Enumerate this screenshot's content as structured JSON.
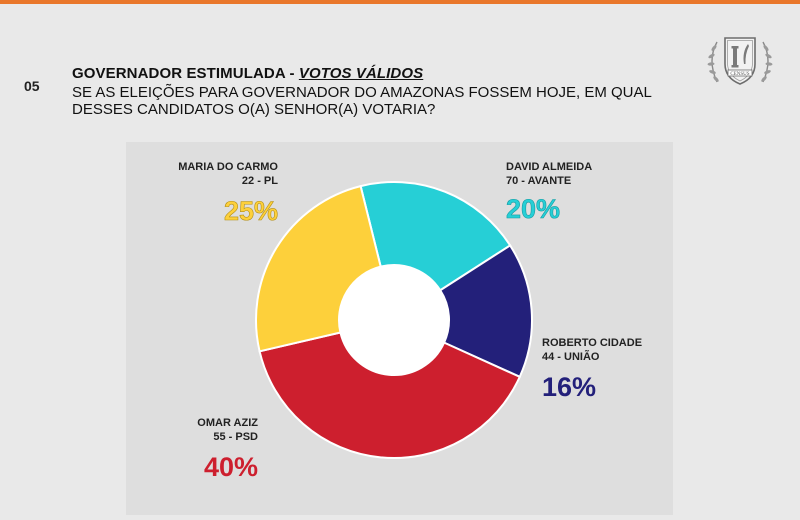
{
  "header": {
    "slide_number": "05",
    "title_main": "GOVERNADOR ESTIMULADA",
    "title_sep": " - ",
    "title_highlight": "VOTOS VÁLIDOS",
    "question": "SE AS ELEIÇÕES PARA GOVERNADOR DO AMAZONAS FOSSEM HOJE, EM QUAL DESSES CANDIDATOS O(A) SENHOR(A) VOTARIA?",
    "logo_text": "CENSUS"
  },
  "colors": {
    "accent_bar": "#e9772b",
    "maria": "#fdd03b",
    "david": "#26cfd6",
    "roberto": "#23207a",
    "omar": "#cd1f2e"
  },
  "chart_data": {
    "type": "pie",
    "variant": "donut",
    "slices": [
      {
        "candidate": "DAVID ALMEIDA",
        "party": "70 - AVANTE",
        "value": 20,
        "label": "20%",
        "color": "#26cfd6"
      },
      {
        "candidate": "ROBERTO CIDADE",
        "party": "44 - UNIÃO",
        "value": 16,
        "label": "16%",
        "color": "#23207a"
      },
      {
        "candidate": "OMAR AZIZ",
        "party": "55 - PSD",
        "value": 40,
        "label": "40%",
        "color": "#cd1f2e"
      },
      {
        "candidate": "MARIA DO CARMO",
        "party": "22 - PL",
        "value": 25,
        "label": "25%",
        "color": "#fdd03b"
      }
    ]
  }
}
